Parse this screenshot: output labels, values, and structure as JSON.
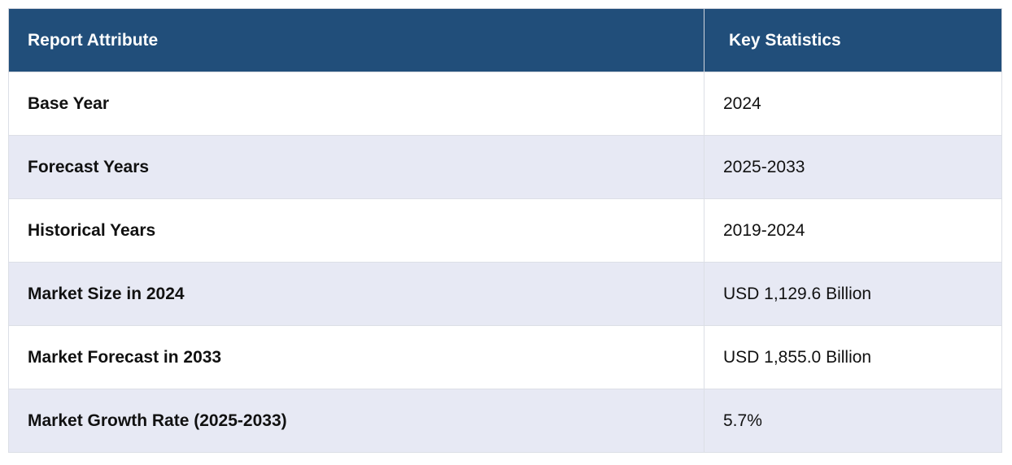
{
  "header": {
    "col1": "Report Attribute",
    "col2": "Key Statistics"
  },
  "rows": [
    {
      "attribute": "Base Year",
      "value": "2024"
    },
    {
      "attribute": "Forecast Years",
      "value": "2025-2033"
    },
    {
      "attribute": "Historical Years",
      "value": "2019-2024"
    },
    {
      "attribute": "Market Size in 2024",
      "value": "USD 1,129.6 Billion"
    },
    {
      "attribute": "Market Forecast in 2033",
      "value": "USD 1,855.0 Billion"
    },
    {
      "attribute": "Market Growth Rate (2025-2033)",
      "value": "5.7%"
    }
  ],
  "colors": {
    "header_bg": "#214e7a",
    "header_text": "#ffffff",
    "alt_row_bg": "#e7e9f4"
  }
}
